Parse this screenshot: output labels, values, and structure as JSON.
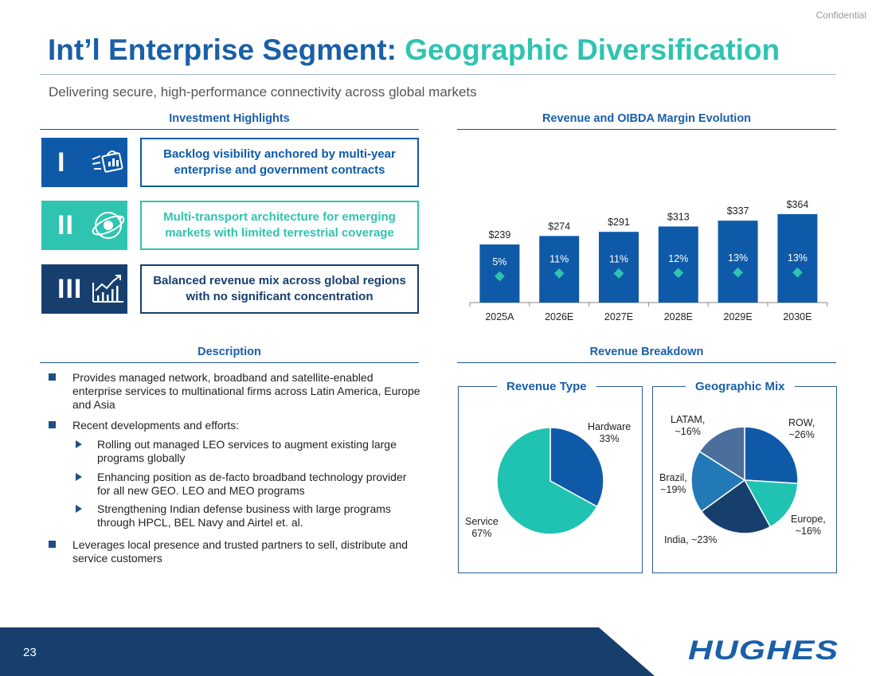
{
  "confidential": "Confidential",
  "title": {
    "main": "Int’l Enterprise Segment:",
    "accent": "Geographic Diversification"
  },
  "subtitle": "Delivering secure, high-performance connectivity across global markets",
  "highlights": {
    "heading": "Investment Highlights",
    "items": [
      {
        "numeral": "I",
        "icon": "handshake-contract-icon",
        "text": "Backlog visibility anchored by multi-year enterprise and government contracts",
        "icon_bg": "#0f5aa8",
        "border": "#0f5aa8"
      },
      {
        "numeral": "II",
        "icon": "satellite-orbit-icon",
        "text": "Multi-transport architecture for emerging markets with limited terrestrial coverage",
        "icon_bg": "#2ec4b0",
        "border": "#2ec4b0"
      },
      {
        "numeral": "III",
        "icon": "growth-chart-icon",
        "text": "Balanced revenue mix across global regions with no significant concentration",
        "icon_bg": "#173f6e",
        "border": "#173f6e"
      }
    ]
  },
  "description": {
    "heading": "Description",
    "bullets": [
      {
        "text": "Provides managed network, broadband and satellite-enabled enterprise services to multinational firms across Latin America, Europe and Asia",
        "sub": []
      },
      {
        "text": "Recent developments and efforts:",
        "sub": [
          "Rolling out managed LEO services to augment existing large programs globally",
          "Enhancing position as de-facto broadband technology provider for all new GEO. LEO and MEO programs",
          "Strengthening Indian defense business with large programs through HPCL, BEL Navy and Airtel et. al."
        ]
      },
      {
        "text": "Leverages local presence and trusted partners to sell, distribute and service customers",
        "sub": []
      }
    ]
  },
  "revenue_heading": "Revenue and OIBDA Margin Evolution",
  "breakdown_heading": "Revenue Breakdown",
  "chart_data": [
    {
      "type": "bar",
      "title": "Revenue and OIBDA Margin Evolution",
      "categories": [
        "2025A",
        "2026E",
        "2027E",
        "2028E",
        "2029E",
        "2030E"
      ],
      "series": [
        {
          "values": [
            239,
            274,
            291,
            313,
            337,
            364
          ],
          "labels": [
            "$239",
            "$274",
            "$291",
            "$313",
            "$337",
            "$364"
          ],
          "color": "#0f5aa8"
        },
        {
          "values": [
            5,
            11,
            11,
            12,
            13,
            13
          ],
          "labels": [
            "5%",
            "11%",
            "11%",
            "12%",
            "13%",
            "13%"
          ],
          "color": "#2ec4b0"
        }
      ],
      "ylim": [
        0,
        400
      ],
      "grid": false
    },
    {
      "type": "pie",
      "title": "Revenue Type",
      "categories": [
        "Hardware",
        "Service"
      ],
      "values": [
        33,
        67
      ],
      "labels": [
        "33%",
        "67%"
      ],
      "colors": [
        "#0f5aa8",
        "#20c3b1"
      ]
    },
    {
      "type": "pie",
      "title": "Geographic Mix",
      "categories": [
        "ROW,",
        "Europe,",
        "India,",
        "Brazil,",
        "LATAM,"
      ],
      "values": [
        26,
        16,
        23,
        19,
        16
      ],
      "labels": [
        "~26%",
        "~16%",
        "~23%",
        "~19%",
        "~16%"
      ],
      "colors": [
        "#0f5aa8",
        "#20c3b1",
        "#173f6e",
        "#2379b5",
        "#4a6f9b"
      ]
    }
  ],
  "footer": {
    "page": "23",
    "logo": "HUGHES",
    "bar_color": "#173f6e"
  }
}
